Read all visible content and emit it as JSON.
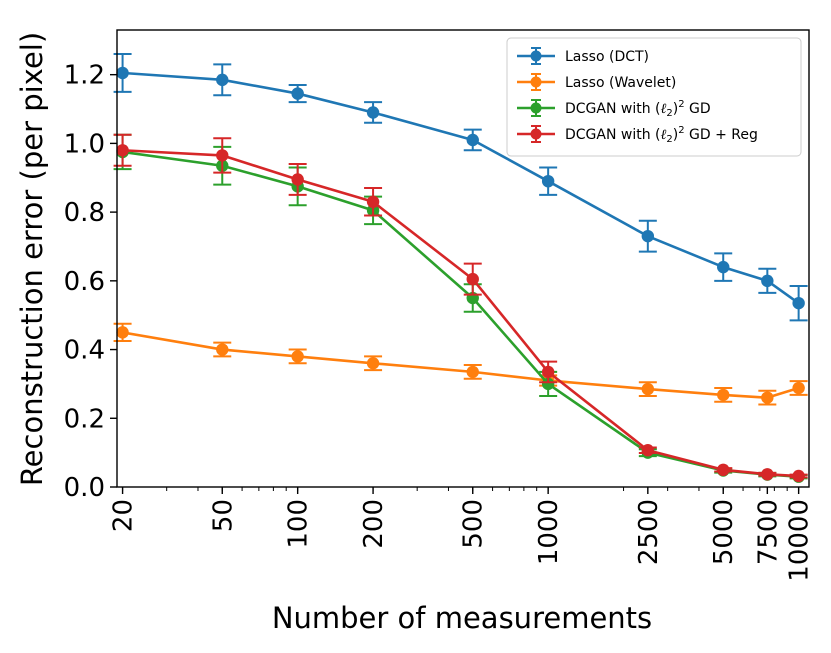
{
  "chart_data": {
    "type": "line",
    "title": "",
    "xlabel": "Number of measurements",
    "ylabel": "Reconstruction error (per pixel)",
    "xscale": "log",
    "xlim": [
      19,
      11000
    ],
    "ylim": [
      0.0,
      1.33
    ],
    "x": [
      20,
      50,
      100,
      200,
      500,
      1000,
      2500,
      5000,
      7500,
      10000
    ],
    "xtick_labels": [
      "20",
      "50",
      "100",
      "200",
      "500",
      "1000",
      "2500",
      "5000",
      "7500",
      "10000"
    ],
    "yticks": [
      0.0,
      0.2,
      0.4,
      0.6,
      0.8,
      1.0,
      1.2
    ],
    "ytick_labels": [
      "0.0",
      "0.2",
      "0.4",
      "0.6",
      "0.8",
      "1.0",
      "1.2"
    ],
    "grid": false,
    "legend_position": "top-right",
    "series": [
      {
        "name": "Lasso (DCT)",
        "legend_base": "Lasso (DCT)",
        "color": "#1f77b4",
        "values": [
          1.205,
          1.185,
          1.145,
          1.09,
          1.01,
          0.89,
          0.73,
          0.64,
          0.6,
          0.535
        ],
        "errors": [
          0.055,
          0.045,
          0.025,
          0.03,
          0.03,
          0.04,
          0.045,
          0.04,
          0.035,
          0.05
        ]
      },
      {
        "name": "Lasso (Wavelet)",
        "legend_base": "Lasso (Wavelet)",
        "color": "#ff7f0e",
        "values": [
          0.45,
          0.4,
          0.38,
          0.36,
          0.335,
          0.31,
          0.285,
          0.268,
          0.26,
          0.288
        ],
        "errors": [
          0.025,
          0.02,
          0.02,
          0.02,
          0.02,
          0.015,
          0.02,
          0.02,
          0.02,
          0.02
        ]
      },
      {
        "name": "DCGAN with (ℓ2)^2 GD",
        "legend_base": "DCGAN with (",
        "legend_sub": "2",
        "legend_sup": "2",
        "legend_tail": " GD",
        "color": "#2ca02c",
        "values": [
          0.975,
          0.935,
          0.875,
          0.805,
          0.55,
          0.3,
          0.1,
          0.048,
          0.036,
          0.03
        ],
        "errors": [
          0.05,
          0.055,
          0.055,
          0.04,
          0.04,
          0.035,
          0.01,
          0.006,
          0.005,
          0.005
        ]
      },
      {
        "name": "DCGAN with (ℓ2)^2 GD + Reg",
        "legend_base": "DCGAN with (",
        "legend_sub": "2",
        "legend_sup": "2",
        "legend_tail": " GD + Reg",
        "color": "#d62728",
        "values": [
          0.98,
          0.965,
          0.895,
          0.83,
          0.605,
          0.335,
          0.107,
          0.05,
          0.037,
          0.032
        ],
        "errors": [
          0.045,
          0.05,
          0.045,
          0.04,
          0.045,
          0.03,
          0.008,
          0.005,
          0.004,
          0.004
        ]
      }
    ]
  }
}
